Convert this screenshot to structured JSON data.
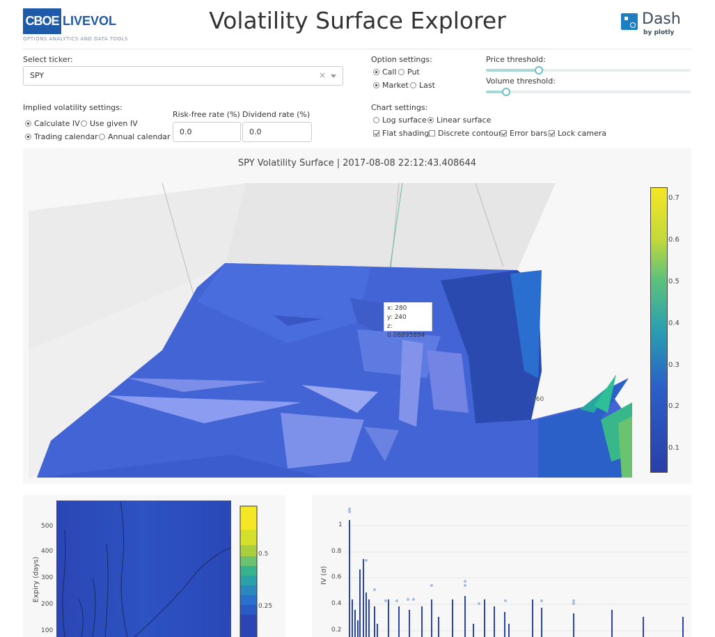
{
  "header": {
    "logo_brand_1": "CBOE",
    "logo_brand_2": "LIVEVOL",
    "logo_tagline": "OPTIONS ANALYTICS AND DATA TOOLS",
    "title": "Volatility Surface Explorer",
    "dash_word": "Dash",
    "dash_by": "by plotly"
  },
  "controls": {
    "ticker_label": "Select ticker:",
    "ticker_value": "SPY",
    "ticker_clear": "×",
    "option_settings_label": "Option settings:",
    "option_type": [
      {
        "label": "Call",
        "selected": true
      },
      {
        "label": "Put",
        "selected": false
      }
    ],
    "price_type": [
      {
        "label": "Market",
        "selected": true
      },
      {
        "label": "Last",
        "selected": false
      }
    ],
    "price_threshold_label": "Price threshold:",
    "price_threshold_level": 0.26,
    "volume_threshold_label": "Volume threshold:",
    "volume_threshold_level": 0.1,
    "iv_settings_label": "Implied volatility settings:",
    "iv_method": [
      {
        "label": "Calculate IV",
        "selected": true
      },
      {
        "label": "Use given IV",
        "selected": false
      }
    ],
    "calendar": [
      {
        "label": "Trading calendar",
        "selected": true
      },
      {
        "label": "Annual calendar",
        "selected": false
      }
    ],
    "risk_free_label": "Risk-free rate (%)",
    "risk_free_value": "0.0",
    "dividend_label": "Dividend rate (%)",
    "dividend_value": "0.0",
    "chart_settings_label": "Chart settings:",
    "surface_type": [
      {
        "label": "Log surface",
        "selected": false
      },
      {
        "label": "Linear surface",
        "selected": true
      }
    ],
    "chart_flags": [
      {
        "label": "Flat shading",
        "checked": true
      },
      {
        "label": "Discrete contour",
        "checked": false
      },
      {
        "label": "Error bars",
        "checked": true
      },
      {
        "label": "Lock camera",
        "checked": true
      }
    ]
  },
  "surface_chart": {
    "title": "SPY Volatility Surface | 2017-08-08 22:12:43.408644",
    "colorbar_ticks": [
      "0.7",
      "0.6",
      "0.5",
      "0.4",
      "0.3",
      "0.2",
      "0.1"
    ],
    "tooltip": {
      "x": "x: 280",
      "y": "y: 240",
      "z": "z: 0.08895894"
    },
    "axis_tick_260": "260",
    "colors": {
      "low": "#2a3fa8",
      "mid": "#2a9fb0",
      "high": "#f5e626"
    }
  },
  "heatmap_chart": {
    "ylabel": "Expiry (days)",
    "yticks": [
      "500",
      "400",
      "300",
      "200",
      "100"
    ],
    "colorbar_ticks": [
      "0.5",
      "0.25"
    ]
  },
  "iv_chart": {
    "ylabel": "IV (σ)",
    "yticks": [
      "1",
      "0.8",
      "0.6",
      "0.4",
      "0.2"
    ]
  }
}
